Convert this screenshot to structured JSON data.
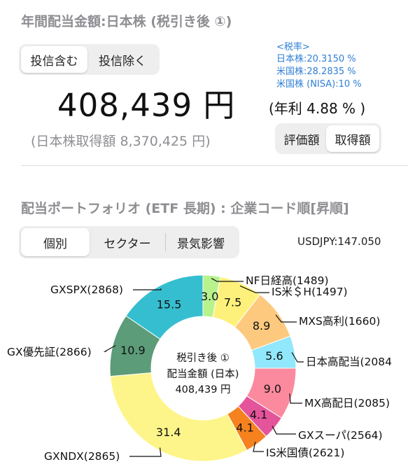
{
  "header": {
    "title": "年間配当金額:日本株 (税引き後 ①)"
  },
  "trust_toggle": {
    "include_label": "投信含む",
    "exclude_label": "投信除く",
    "selected": "include"
  },
  "tax_rates": {
    "heading": "<税率>",
    "jp": "日本株:20.3150 %",
    "us": "米国株:28.2835 %",
    "us_nisa": "米国株 (NISA):10 %"
  },
  "summary": {
    "amount": "408,439 円",
    "yield": "(年利 4.88 % )",
    "acquisition": "(日本株取得額 8,370,425 円)"
  },
  "value_toggle": {
    "market_label": "評価額",
    "cost_label": "取得額",
    "selected": "cost"
  },
  "portfolio": {
    "title": "配当ポートフォリオ (ETF 長期) : 企業コード順[昇順]",
    "tabs": [
      "個別",
      "セクター",
      "景気影響"
    ],
    "selected_tab": "個別",
    "fx_rate": "USDJPY:147.050"
  },
  "donut_center": {
    "line1": "税引き後 ①",
    "line2": "配当金額 (日本)",
    "line3": "408,439 円"
  },
  "chart_data": {
    "type": "donut",
    "title": "",
    "order": "clockwise from top",
    "slices": [
      {
        "label": "NF日経高(1489)",
        "value": 3.0,
        "color": "#b7f28d"
      },
      {
        "label": "IS米＄H(1497)",
        "value": 7.5,
        "color": "#fdf17c"
      },
      {
        "label": "MXS高利(1660)",
        "value": 8.9,
        "color": "#fcc97e"
      },
      {
        "label": "日本高配当(2084",
        "value": 5.6,
        "color": "#91e7fb"
      },
      {
        "label": "MX高配日(2085)",
        "value": 9.0,
        "color": "#fb8a9e"
      },
      {
        "label": "GXスーパ(2564)",
        "value": 4.1,
        "color": "#e4549b"
      },
      {
        "label": "IS米国債(2621)",
        "value": 4.1,
        "color": "#f5821f"
      },
      {
        "label": "GXNDX(2865)",
        "value": 31.4,
        "color": "#fef58a"
      },
      {
        "label": "GX優先証(2866)",
        "value": 10.9,
        "color": "#5c9c78"
      },
      {
        "label": "GXSPX(2868)",
        "value": 15.5,
        "color": "#35bed0"
      }
    ]
  }
}
